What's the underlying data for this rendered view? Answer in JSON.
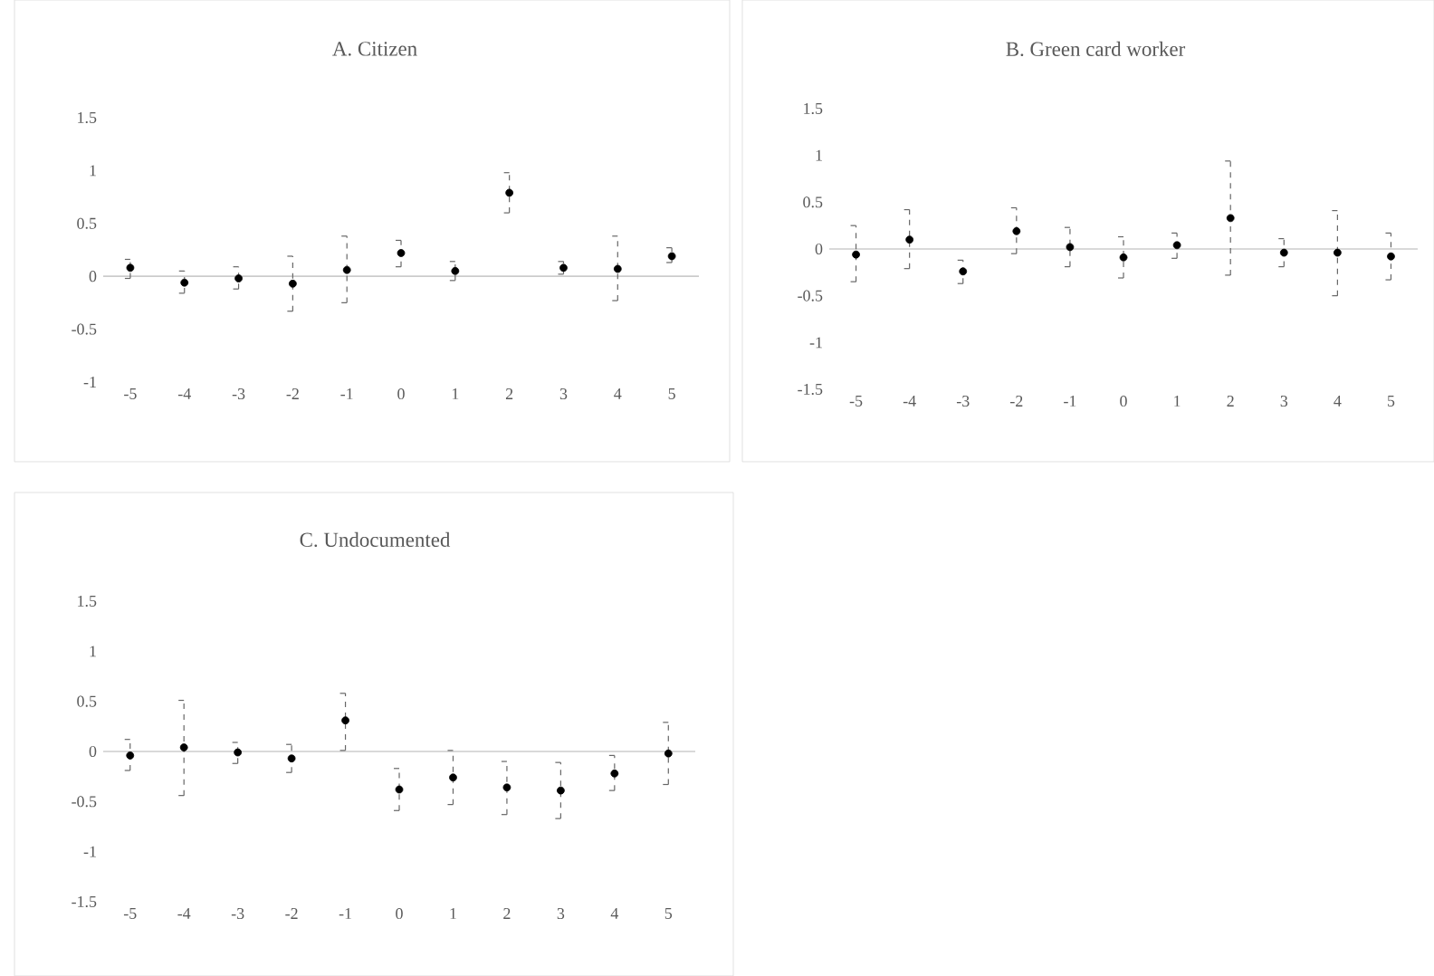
{
  "chart_data": [
    {
      "type": "scatter",
      "title": "A. Citizen",
      "categories": [
        "-5",
        "-4",
        "-3",
        "-2",
        "-1",
        "0",
        "1",
        "2",
        "3",
        "4",
        "5"
      ],
      "values": [
        0.08,
        -0.06,
        -0.02,
        -0.07,
        0.06,
        0.22,
        0.05,
        0.79,
        0.08,
        0.07,
        0.19
      ],
      "errors": [
        [
          -0.02,
          0.16
        ],
        [
          -0.16,
          0.05
        ],
        [
          -0.12,
          0.09
        ],
        [
          -0.33,
          0.19
        ],
        [
          -0.25,
          0.38
        ],
        [
          0.09,
          0.34
        ],
        [
          -0.04,
          0.14
        ],
        [
          0.6,
          0.98
        ],
        [
          0.02,
          0.14
        ],
        [
          -0.23,
          0.38
        ],
        [
          0.13,
          0.27
        ]
      ],
      "color": "#000000",
      "ylim": [
        -1,
        1.5
      ],
      "yticks": [
        -1,
        -0.5,
        0,
        0.5,
        1,
        1.5
      ]
    },
    {
      "type": "scatter",
      "title": "B. Green card worker",
      "categories": [
        "-5",
        "-4",
        "-3",
        "-2",
        "-1",
        "0",
        "1",
        "2",
        "3",
        "4",
        "5"
      ],
      "values": [
        -0.06,
        0.1,
        -0.24,
        0.19,
        0.02,
        -0.09,
        0.04,
        0.33,
        -0.04,
        -0.04,
        -0.08
      ],
      "errors": [
        [
          -0.35,
          0.25
        ],
        [
          -0.21,
          0.42
        ],
        [
          -0.37,
          -0.12
        ],
        [
          -0.05,
          0.44
        ],
        [
          -0.19,
          0.23
        ],
        [
          -0.31,
          0.13
        ],
        [
          -0.1,
          0.17
        ],
        [
          -0.28,
          0.94
        ],
        [
          -0.19,
          0.11
        ],
        [
          -0.5,
          0.41
        ],
        [
          -0.33,
          0.17
        ]
      ],
      "color": "#000000",
      "ylim": [
        -1.5,
        1.5
      ],
      "yticks": [
        -1.5,
        -1,
        -0.5,
        0,
        0.5,
        1,
        1.5
      ]
    },
    {
      "type": "scatter",
      "title": "C. Undocumented",
      "categories": [
        "-5",
        "-4",
        "-3",
        "-2",
        "-1",
        "0",
        "1",
        "2",
        "3",
        "4",
        "5"
      ],
      "values": [
        -0.04,
        0.04,
        -0.01,
        -0.07,
        0.31,
        -0.38,
        -0.26,
        -0.36,
        -0.39,
        -0.22,
        -0.02
      ],
      "errors": [
        [
          -0.19,
          0.12
        ],
        [
          -0.44,
          0.51
        ],
        [
          -0.12,
          0.09
        ],
        [
          -0.21,
          0.07
        ],
        [
          0.01,
          0.58
        ],
        [
          -0.59,
          -0.17
        ],
        [
          -0.53,
          0.01
        ],
        [
          -0.63,
          -0.1
        ],
        [
          -0.67,
          -0.11
        ],
        [
          -0.39,
          -0.04
        ],
        [
          -0.33,
          0.29
        ]
      ],
      "color": "#000000",
      "ylim": [
        -1.5,
        1.5
      ],
      "yticks": [
        -1.5,
        -1,
        -0.5,
        0,
        0.5,
        1,
        1.5
      ]
    }
  ]
}
